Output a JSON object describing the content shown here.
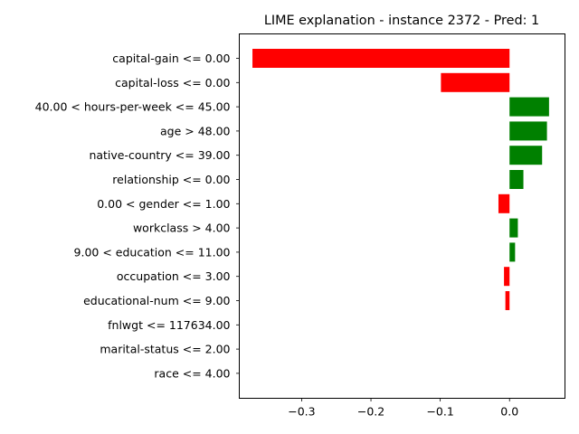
{
  "chart_data": {
    "type": "bar",
    "orientation": "horizontal",
    "title": "LIME explanation - instance 2372 - Pred: 1",
    "xlabel": "",
    "ylabel": "",
    "xlim": [
      -0.39,
      0.08
    ],
    "xticks": [
      -0.3,
      -0.2,
      -0.1,
      0.0
    ],
    "xtick_labels": [
      "−0.3",
      "−0.2",
      "−0.1",
      "0.0"
    ],
    "grid": false,
    "colors": {
      "positive": "#008000",
      "negative": "#ff0000"
    },
    "categories": [
      "capital-gain <= 0.00",
      "capital-loss <= 0.00",
      "40.00 < hours-per-week <= 45.00",
      "age > 48.00",
      "native-country <= 39.00",
      "relationship <= 0.00",
      "0.00 < gender <= 1.00",
      "workclass > 4.00",
      "9.00 < education <= 11.00",
      "occupation <= 3.00",
      "educational-num <= 9.00",
      "fnlwgt <= 117634.00",
      "marital-status <= 2.00",
      "race <= 4.00"
    ],
    "values": [
      -0.371,
      -0.099,
      0.057,
      0.054,
      0.047,
      0.02,
      -0.016,
      0.012,
      0.008,
      -0.008,
      -0.006,
      0.0,
      0.0,
      0.0
    ]
  }
}
